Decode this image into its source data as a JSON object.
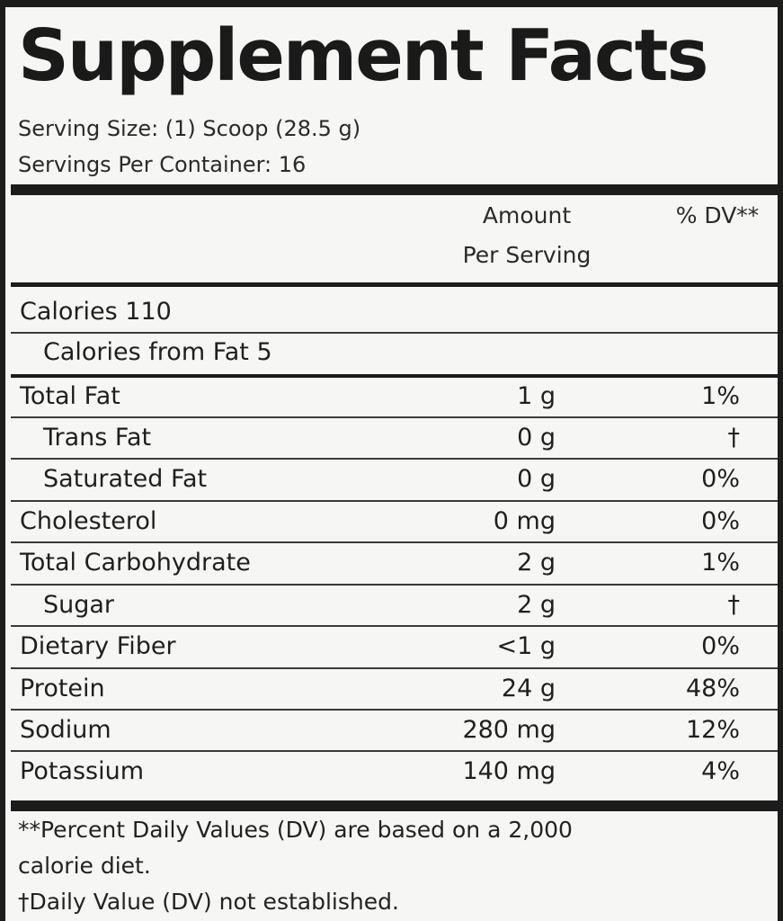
{
  "title": "Supplement Facts",
  "serving_size": "Serving Size: (1) Scoop (28.5 g)",
  "servings_per_container": "Servings Per Container: 16",
  "columns": {
    "amount_line1": "Amount",
    "amount_line2": "Per Serving",
    "dv": "% DV**"
  },
  "calories": {
    "label": "Calories 110",
    "from_fat": "Calories from Fat 5"
  },
  "nutrients": [
    {
      "name": "Total Fat",
      "amount": "1 g",
      "dv": "1%"
    },
    {
      "name": "Trans Fat",
      "amount": "0 g",
      "dv": "†"
    },
    {
      "name": "Saturated Fat",
      "amount": "0 g",
      "dv": "0%"
    },
    {
      "name": "Cholesterol",
      "amount": "0 mg",
      "dv": "0%"
    },
    {
      "name": "Total Carbohydrate",
      "amount": "2 g",
      "dv": "1%"
    },
    {
      "name": "Sugar",
      "amount": "2 g",
      "dv": "†"
    },
    {
      "name": "Dietary Fiber",
      "amount": "<1 g",
      "dv": "0%"
    },
    {
      "name": "Protein",
      "amount": "24 g",
      "dv": "48%"
    },
    {
      "name": "Sodium",
      "amount": "280 mg",
      "dv": "12%"
    },
    {
      "name": "Potassium",
      "amount": "140 mg",
      "dv": "4%"
    }
  ],
  "footnotes": {
    "line1": "**Percent Daily Values (DV) are based on a 2,000",
    "line2": "calorie diet.",
    "line3": "†Daily Value (DV) not established."
  }
}
